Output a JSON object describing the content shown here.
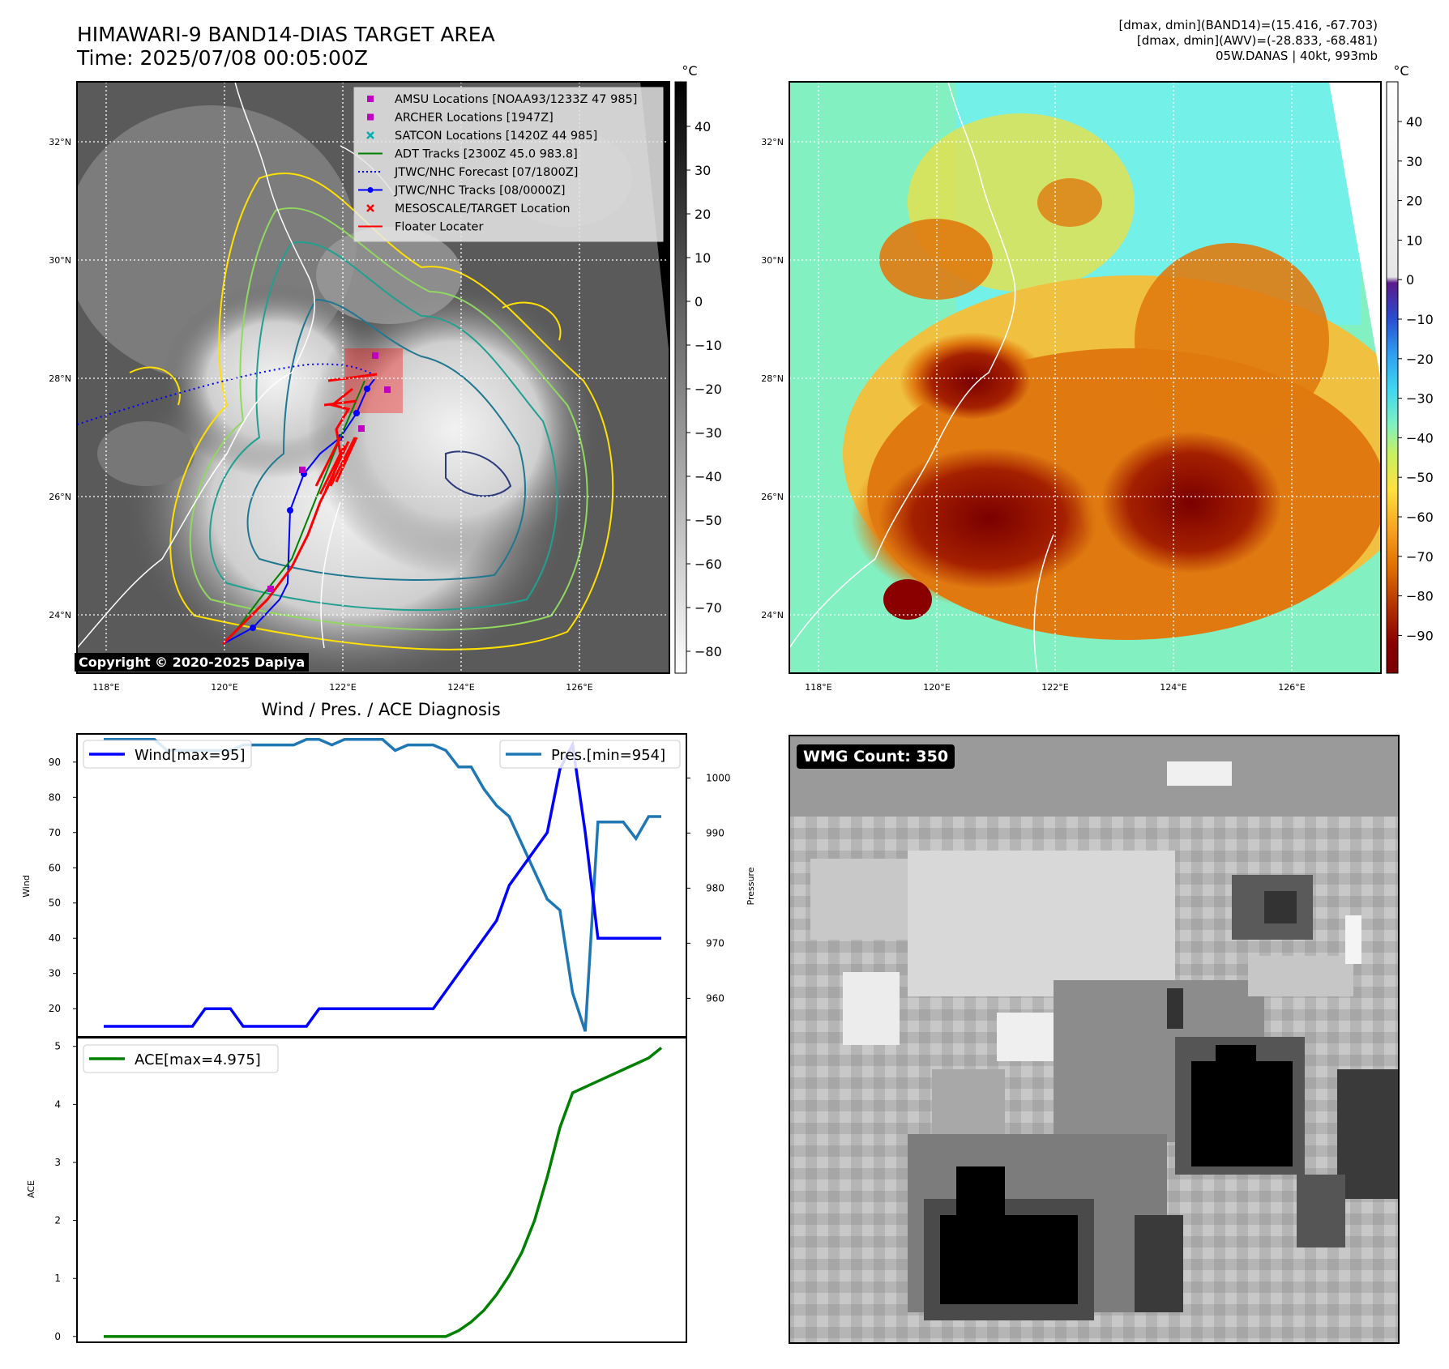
{
  "header": {
    "title": "HIMAWARI-9 BAND14-DIAS TARGET AREA",
    "time": "Time: 2025/07/08 00:05:00Z",
    "dmax_band14": "[dmax, dmin](BAND14)=(15.416, -67.703)",
    "dmax_awv": "[dmax, dmin](AWV)=(-28.833, -68.481)",
    "storm": "05W.DANAS | 40kt, 993mb"
  },
  "map": {
    "lat_labels": [
      "32°N",
      "30°N",
      "28°N",
      "26°N",
      "24°N"
    ],
    "lon_labels": [
      "118°E",
      "120°E",
      "122°E",
      "124°E",
      "126°E"
    ],
    "copyright": "Copyright © 2020-2025 Dapiya",
    "legend": [
      {
        "label": "AMSU Locations [NOAA93/1233Z 47 985]",
        "color": "#c000c0",
        "marker": "square"
      },
      {
        "label": "ARCHER Locations [1947Z]",
        "color": "#c000c0",
        "marker": "square"
      },
      {
        "label": "SATCON Locations [1420Z 44 985]",
        "color": "#00b0b0",
        "marker": "x"
      },
      {
        "label": "ADT Tracks [2300Z 45.0 983.8]",
        "color": "#008000",
        "marker": "line"
      },
      {
        "label": "JTWC/NHC Forecast [07/1800Z]",
        "color": "#0000ff",
        "marker": "dotted"
      },
      {
        "label": "JTWC/NHC Tracks [08/0000Z]",
        "color": "#0000ff",
        "marker": "line-dot"
      },
      {
        "label": "MESOSCALE/TARGET Location",
        "color": "#ff0000",
        "marker": "x"
      },
      {
        "label": "Floater Locater",
        "color": "#ff0000",
        "marker": "line"
      }
    ],
    "colorbar1": {
      "unit": "°C",
      "ticks": [
        "40",
        "30",
        "20",
        "10",
        "0",
        "−10",
        "−20",
        "−30",
        "−40",
        "−50",
        "−60",
        "−70",
        "−80"
      ]
    },
    "colorbar2": {
      "unit": "°C",
      "ticks": [
        "40",
        "30",
        "20",
        "10",
        "0",
        "−10",
        "−20",
        "−30",
        "−40",
        "−50",
        "−60",
        "−70",
        "−80",
        "−90"
      ]
    }
  },
  "wmg": {
    "label": "WMG Count: 350"
  },
  "chart_data": [
    {
      "type": "line",
      "title": "Wind / Pres. / ACE Diagnosis",
      "ylabel": "Wind",
      "y2label": "Pressure",
      "ylim": [
        12,
        98
      ],
      "y2lim": [
        953,
        1008
      ],
      "yticks": [
        20,
        30,
        40,
        50,
        60,
        70,
        80,
        90
      ],
      "y2ticks": [
        960,
        970,
        980,
        990,
        1000
      ],
      "series": [
        {
          "name": "Wind[max=95]",
          "color": "#0000ff",
          "values": [
            15,
            15,
            15,
            15,
            15,
            15,
            15,
            15,
            20,
            20,
            20,
            15,
            15,
            15,
            15,
            15,
            15,
            20,
            20,
            20,
            20,
            20,
            20,
            20,
            20,
            20,
            20,
            25,
            30,
            35,
            40,
            45,
            55,
            60,
            65,
            70,
            88,
            95,
            70,
            40,
            40,
            40,
            40,
            40,
            40
          ]
        },
        {
          "name": "Pres.[min=954]",
          "color": "#1f77b4",
          "values": [
            1007,
            1007,
            1007,
            1007,
            1007,
            1005,
            1005,
            1005,
            1005,
            1005,
            1005,
            1006,
            1006,
            1006,
            1006,
            1006,
            1007,
            1007,
            1006,
            1007,
            1007,
            1007,
            1007,
            1005,
            1006,
            1006,
            1006,
            1005,
            1002,
            1002,
            998,
            995,
            993,
            988,
            983,
            978,
            976,
            961,
            954,
            992,
            992,
            992,
            989,
            993,
            993
          ]
        }
      ]
    },
    {
      "type": "line",
      "ylabel": "ACE",
      "ylim": [
        -0.1,
        5.15
      ],
      "yticks": [
        0,
        1,
        2,
        3,
        4,
        5
      ],
      "series": [
        {
          "name": "ACE[max=4.975]",
          "color": "#008000",
          "values": [
            0,
            0,
            0,
            0,
            0,
            0,
            0,
            0,
            0,
            0,
            0,
            0,
            0,
            0,
            0,
            0,
            0,
            0,
            0,
            0,
            0,
            0,
            0,
            0,
            0,
            0,
            0,
            0,
            0.1,
            0.25,
            0.45,
            0.72,
            1.05,
            1.45,
            2.0,
            2.75,
            3.6,
            4.2,
            4.3,
            4.4,
            4.5,
            4.6,
            4.7,
            4.8,
            4.975
          ]
        }
      ]
    }
  ]
}
